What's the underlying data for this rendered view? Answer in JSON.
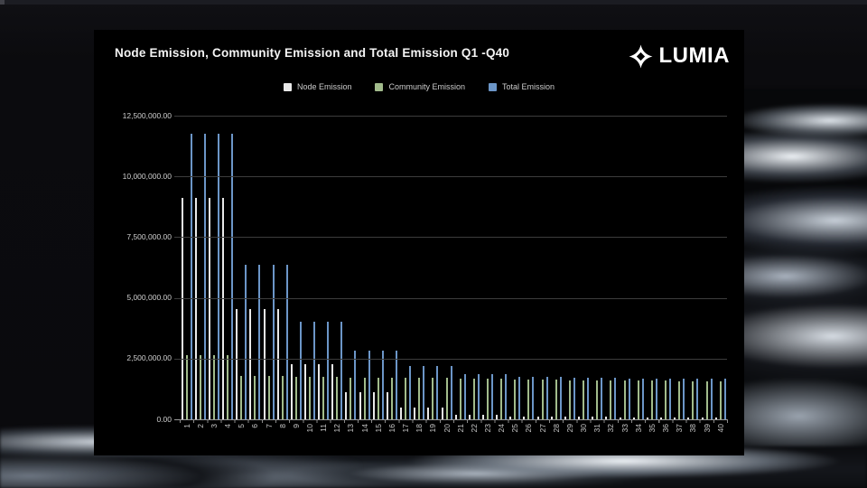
{
  "brand": {
    "name": "LUMIA"
  },
  "chart_data": {
    "type": "bar",
    "title": "Node Emission, Community Emission and Total Emission Q1 -Q40",
    "categories": [
      1,
      2,
      3,
      4,
      5,
      6,
      7,
      8,
      9,
      10,
      11,
      12,
      13,
      14,
      15,
      16,
      17,
      18,
      19,
      20,
      21,
      22,
      23,
      24,
      25,
      26,
      27,
      28,
      29,
      30,
      31,
      32,
      33,
      34,
      35,
      36,
      37,
      38,
      39,
      40
    ],
    "series": [
      {
        "name": "Node Emission",
        "color": "#e9e9e9",
        "values": [
          9100000,
          9100000,
          9100000,
          9100000,
          4550000,
          4550000,
          4550000,
          4550000,
          2275000,
          2275000,
          2275000,
          2275000,
          1100000,
          1100000,
          1100000,
          1100000,
          480000,
          480000,
          480000,
          480000,
          200000,
          200000,
          200000,
          200000,
          120000,
          120000,
          120000,
          120000,
          100000,
          100000,
          100000,
          100000,
          90000,
          90000,
          90000,
          90000,
          80000,
          80000,
          80000,
          80000
        ]
      },
      {
        "name": "Community Emission",
        "color": "#a2bc8c",
        "values": [
          2650000,
          2650000,
          2650000,
          2650000,
          1800000,
          1800000,
          1800000,
          1800000,
          1750000,
          1750000,
          1750000,
          1750000,
          1720000,
          1720000,
          1720000,
          1720000,
          1700000,
          1700000,
          1700000,
          1700000,
          1670000,
          1670000,
          1670000,
          1670000,
          1640000,
          1640000,
          1640000,
          1640000,
          1620000,
          1620000,
          1620000,
          1620000,
          1600000,
          1600000,
          1600000,
          1600000,
          1580000,
          1580000,
          1580000,
          1580000
        ]
      },
      {
        "name": "Total Emission",
        "color": "#6c96c8",
        "values": [
          11750000,
          11750000,
          11750000,
          11750000,
          6350000,
          6350000,
          6350000,
          6350000,
          4025000,
          4025000,
          4025000,
          4025000,
          2820000,
          2820000,
          2820000,
          2820000,
          2180000,
          2180000,
          2180000,
          2180000,
          1870000,
          1870000,
          1870000,
          1870000,
          1760000,
          1760000,
          1760000,
          1760000,
          1720000,
          1720000,
          1720000,
          1720000,
          1690000,
          1690000,
          1690000,
          1690000,
          1660000,
          1660000,
          1660000,
          1660000
        ]
      }
    ],
    "ylim": [
      0,
      12500000
    ],
    "y_tick_labels": [
      "12,500,000.00",
      "10,000,000.00",
      "7,500,000.00",
      "5,000,000.00",
      "2,500,000.00",
      "0.00"
    ],
    "y_tick_values": [
      12500000,
      10000000,
      7500000,
      5000000,
      2500000,
      0
    ],
    "grid": true,
    "legend_position": "top"
  }
}
